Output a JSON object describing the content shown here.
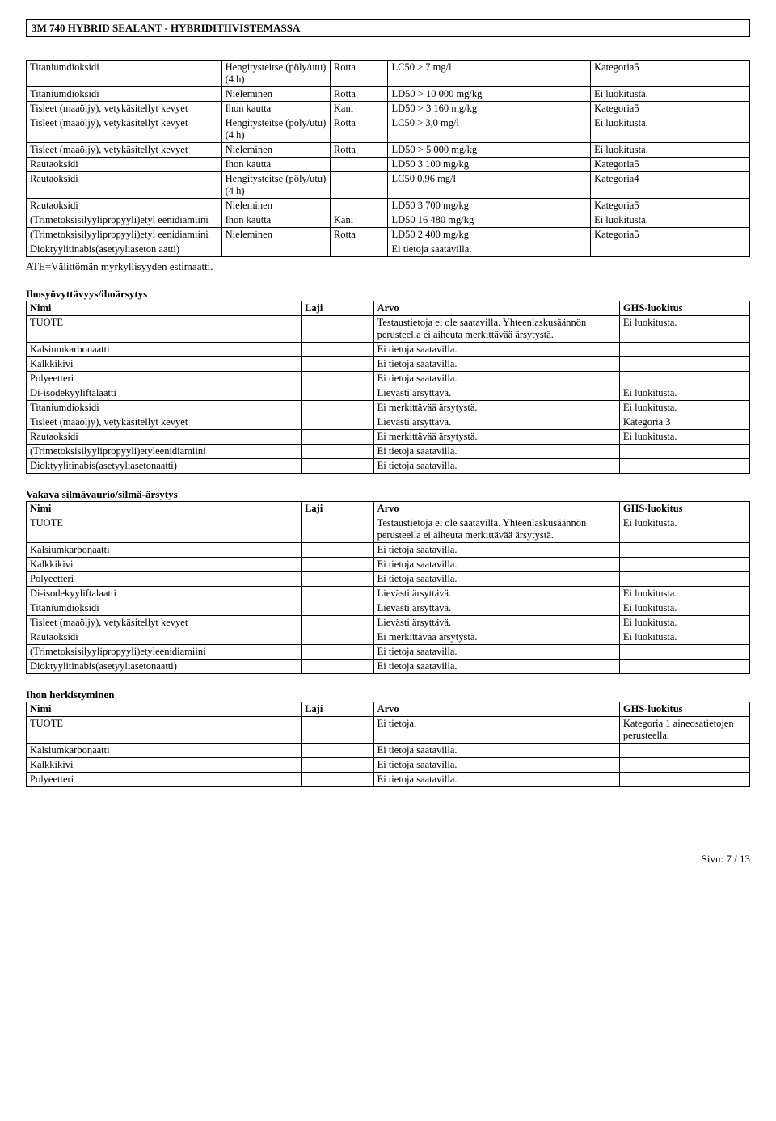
{
  "doc_title": "3M 740 HYBRID SEALANT - HYBRIDITIIVISTEMASSA",
  "ate_line": "ATE=Välittömän myrkyllisyyden estimaatti.",
  "footer": "Sivu: 7 /  13",
  "table1": {
    "col_widths": [
      "27%",
      "15%",
      "8%",
      "28%",
      "22%"
    ],
    "rows": [
      [
        "Titaniumdioksidi",
        "Hengitysteitse (pöly/utu) (4 h)",
        "Rotta",
        "LC50 > 7 mg/l",
        "Kategoria5"
      ],
      [
        "Titaniumdioksidi",
        "Nieleminen",
        "Rotta",
        "LD50 > 10 000 mg/kg",
        "Ei luokitusta."
      ],
      [
        "Tisleet (maaöljy), vetykäsitellyt kevyet",
        "Ihon kautta",
        "Kani",
        "LD50 > 3 160 mg/kg",
        "Kategoria5"
      ],
      [
        "Tisleet (maaöljy), vetykäsitellyt kevyet",
        "Hengitysteitse (pöly/utu) (4 h)",
        "Rotta",
        "LC50 > 3,0 mg/l",
        "Ei luokitusta."
      ],
      [
        "Tisleet (maaöljy), vetykäsitellyt kevyet",
        "Nieleminen",
        "Rotta",
        "LD50 > 5 000 mg/kg",
        "Ei luokitusta."
      ],
      [
        "Rautaoksidi",
        "Ihon kautta",
        "",
        "LD50  3 100 mg/kg",
        "Kategoria5"
      ],
      [
        "Rautaoksidi",
        "Hengitysteitse (pöly/utu) (4 h)",
        "",
        "LC50  0,96 mg/l",
        "Kategoria4"
      ],
      [
        "Rautaoksidi",
        "Nieleminen",
        "",
        "LD50  3 700 mg/kg",
        "Kategoria5"
      ],
      [
        "(Trimetoksisilyylipropyyli)etyl eenidiamiini",
        "Ihon kautta",
        "Kani",
        "LD50  16 480 mg/kg",
        "Ei luokitusta."
      ],
      [
        "(Trimetoksisilyylipropyyli)etyl eenidiamiini",
        "Nieleminen",
        "Rotta",
        "LD50  2 400 mg/kg",
        "Kategoria5"
      ],
      [
        "Dioktyylitinabis(asetyyliaseton aatti)",
        "",
        "",
        "Ei tietoja saatavilla.",
        ""
      ]
    ]
  },
  "section1": {
    "title": "Ihosyövyttävyys/ihoärsytys",
    "rows": [
      [
        "Nimi",
        "Laji",
        "Arvo",
        "GHS-luokitus"
      ],
      [
        "TUOTE",
        "",
        "Testaustietoja ei ole saatavilla. Yhteenlaskusäännön perusteella ei aiheuta merkittävää ärsytystä.",
        "Ei luokitusta."
      ],
      [
        "Kalsiumkarbonaatti",
        "",
        "Ei tietoja saatavilla.",
        ""
      ],
      [
        "Kalkkikivi",
        "",
        "Ei tietoja saatavilla.",
        ""
      ],
      [
        "Polyeetteri",
        "",
        "Ei tietoja saatavilla.",
        ""
      ],
      [
        "Di-isodekyyliftalaatti",
        "",
        "Lievästi ärsyttävä.",
        "Ei luokitusta."
      ],
      [
        "Titaniumdioksidi",
        "",
        "Ei merkittävää ärsytystä.",
        "Ei luokitusta."
      ],
      [
        "Tisleet (maaöljy), vetykäsitellyt kevyet",
        "",
        "Lievästi ärsyttävä.",
        "Kategoria 3"
      ],
      [
        "Rautaoksidi",
        "",
        "Ei merkittävää ärsytystä.",
        "Ei luokitusta."
      ],
      [
        "(Trimetoksisilyylipropyyli)etyleenidiamiini",
        "",
        "Ei tietoja saatavilla.",
        ""
      ],
      [
        "Dioktyylitinabis(asetyyliasetonaatti)",
        "",
        "Ei tietoja saatavilla.",
        ""
      ]
    ]
  },
  "section2": {
    "title": "Vakava silmävaurio/silmä-ärsytys",
    "rows": [
      [
        "Nimi",
        "Laji",
        "Arvo",
        "GHS-luokitus"
      ],
      [
        "TUOTE",
        "",
        "Testaustietoja ei ole saatavilla. Yhteenlaskusäännön perusteella ei aiheuta merkittävää ärsytystä.",
        "Ei luokitusta."
      ],
      [
        "Kalsiumkarbonaatti",
        "",
        "Ei tietoja saatavilla.",
        ""
      ],
      [
        "Kalkkikivi",
        "",
        "Ei tietoja saatavilla.",
        ""
      ],
      [
        "Polyeetteri",
        "",
        "Ei tietoja saatavilla.",
        ""
      ],
      [
        "Di-isodekyyliftalaatti",
        "",
        "Lievästi ärsyttävä.",
        "Ei luokitusta."
      ],
      [
        "Titaniumdioksidi",
        "",
        "Lievästi ärsyttävä.",
        "Ei luokitusta."
      ],
      [
        "Tisleet (maaöljy), vetykäsitellyt kevyet",
        "",
        "Lievästi ärsyttävä.",
        "Ei luokitusta."
      ],
      [
        "Rautaoksidi",
        "",
        "Ei merkittävää ärsytystä.",
        "Ei luokitusta."
      ],
      [
        "(Trimetoksisilyylipropyyli)etyleenidiamiini",
        "",
        "Ei tietoja saatavilla.",
        ""
      ],
      [
        "Dioktyylitinabis(asetyyliasetonaatti)",
        "",
        "Ei tietoja saatavilla.",
        ""
      ]
    ]
  },
  "section3": {
    "title": "Ihon herkistyminen",
    "rows": [
      [
        "Nimi",
        "Laji",
        "Arvo",
        "GHS-luokitus"
      ],
      [
        "TUOTE",
        "",
        "Ei tietoja.",
        "Kategoria 1 aineosatietojen perusteella."
      ],
      [
        "Kalsiumkarbonaatti",
        "",
        "Ei tietoja saatavilla.",
        ""
      ],
      [
        "Kalkkikivi",
        "",
        "Ei tietoja saatavilla.",
        ""
      ],
      [
        "Polyeetteri",
        "",
        "Ei tietoja saatavilla.",
        ""
      ]
    ]
  },
  "four_col_widths": [
    "38%",
    "10%",
    "34%",
    "18%"
  ]
}
